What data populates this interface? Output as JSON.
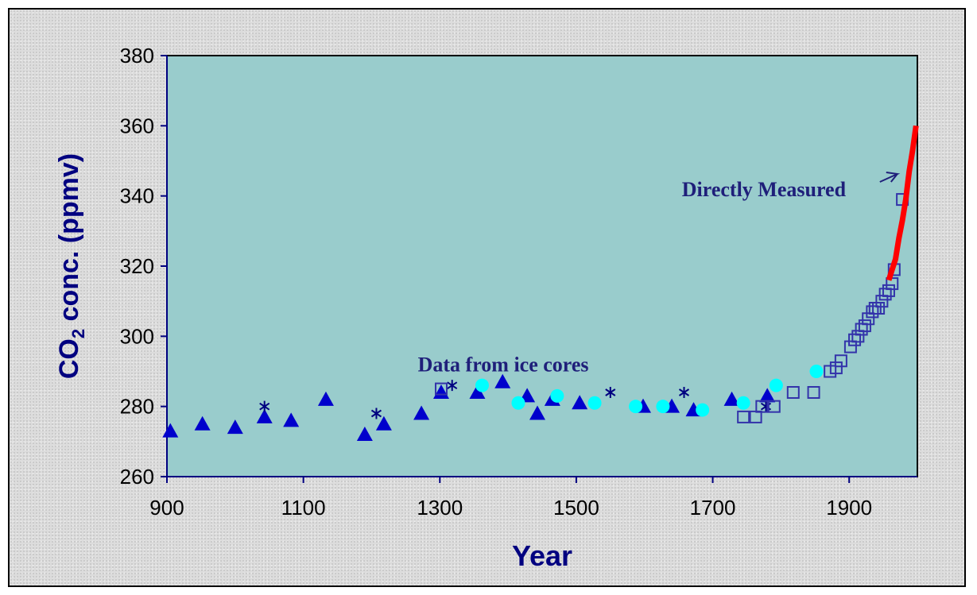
{
  "chart_data": {
    "type": "scatter",
    "title": "",
    "xlabel": "Year",
    "ylabel_main": "CO",
    "ylabel_sub": "2",
    "ylabel_rest": " conc. (ppmv)",
    "xlim": [
      900,
      2000
    ],
    "ylim": [
      260,
      380
    ],
    "x_ticks": [
      900,
      1100,
      1300,
      1500,
      1700,
      1900
    ],
    "y_ticks": [
      260,
      280,
      300,
      320,
      340,
      360,
      380
    ],
    "grid": false,
    "plot_background": "#99cccc",
    "annotations": [
      {
        "text": "Directly Measured",
        "x": 1775,
        "y": 342
      },
      {
        "text": "Data from ice cores",
        "x": 1393,
        "y": 292
      }
    ],
    "series": [
      {
        "marker": "triangle",
        "color": "#0000cc",
        "points": [
          [
            905,
            273
          ],
          [
            952,
            275
          ],
          [
            1000,
            274
          ],
          [
            1043,
            277
          ],
          [
            1082,
            276
          ],
          [
            1133,
            282
          ],
          [
            1190,
            272
          ],
          [
            1218,
            275
          ],
          [
            1273,
            278
          ],
          [
            1302,
            284
          ],
          [
            1355,
            284
          ],
          [
            1392,
            287
          ],
          [
            1428,
            283
          ],
          [
            1443,
            278
          ],
          [
            1465,
            282
          ],
          [
            1505,
            281
          ],
          [
            1598,
            280
          ],
          [
            1640,
            280
          ],
          [
            1672,
            279
          ],
          [
            1728,
            282
          ],
          [
            1780,
            283
          ]
        ]
      },
      {
        "marker": "circle",
        "color": "#00ffff",
        "points": [
          [
            1362,
            286
          ],
          [
            1415,
            281
          ],
          [
            1472,
            283
          ],
          [
            1527,
            281
          ],
          [
            1587,
            280
          ],
          [
            1627,
            280
          ],
          [
            1685,
            279
          ],
          [
            1745,
            281
          ],
          [
            1793,
            286
          ],
          [
            1852,
            290
          ]
        ]
      },
      {
        "marker": "asterisk",
        "color": "#000080",
        "points": [
          [
            1043,
            280
          ],
          [
            1207,
            278
          ],
          [
            1318,
            286
          ],
          [
            1550,
            284
          ],
          [
            1658,
            284
          ],
          [
            1778,
            280
          ]
        ]
      },
      {
        "marker": "open-square",
        "color": "#3333aa",
        "points": [
          [
            1302,
            285
          ],
          [
            1745,
            277
          ],
          [
            1763,
            277
          ],
          [
            1772,
            280
          ],
          [
            1790,
            280
          ],
          [
            1818,
            284
          ],
          [
            1848,
            284
          ],
          [
            1872,
            290
          ],
          [
            1881,
            291
          ],
          [
            1888,
            293
          ],
          [
            1902,
            297
          ],
          [
            1908,
            299
          ],
          [
            1913,
            300
          ],
          [
            1918,
            302
          ],
          [
            1923,
            303
          ],
          [
            1928,
            305
          ],
          [
            1934,
            307
          ],
          [
            1938,
            308
          ],
          [
            1943,
            308
          ],
          [
            1948,
            310
          ],
          [
            1953,
            312
          ],
          [
            1958,
            313
          ],
          [
            1963,
            315
          ],
          [
            1966,
            319
          ],
          [
            1978,
            339
          ]
        ]
      },
      {
        "type": "line",
        "color": "#ff0000",
        "points": [
          [
            1958,
            316
          ],
          [
            1963,
            319
          ],
          [
            1968,
            322
          ],
          [
            1973,
            328
          ],
          [
            1978,
            333
          ],
          [
            1983,
            339
          ],
          [
            1988,
            347
          ],
          [
            1993,
            353
          ],
          [
            1998,
            360
          ]
        ]
      }
    ]
  }
}
